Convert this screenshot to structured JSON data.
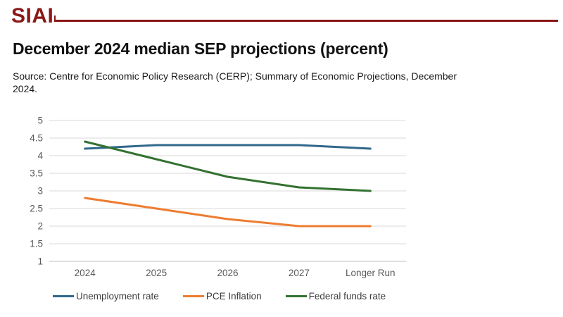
{
  "header": {
    "logo": "SIAI",
    "accent_color": "#8B1717"
  },
  "title": "December 2024 median SEP projections (percent)",
  "source": "Source: Centre for Economic Policy Research (CERP); Summary of Economic Projections, December 2024.",
  "chart_data": {
    "type": "line",
    "title": "December 2024 median SEP projections (percent)",
    "categories": [
      "2024",
      "2025",
      "2026",
      "2027",
      "Longer Run"
    ],
    "series": [
      {
        "name": "Unemployment rate",
        "color": "#31688C",
        "values": [
          4.2,
          4.3,
          4.3,
          4.3,
          4.2
        ]
      },
      {
        "name": "PCE Inflation",
        "color": "#ED7D31",
        "values": [
          2.8,
          2.5,
          2.2,
          2.0,
          2.0
        ]
      },
      {
        "name": "Federal funds rate",
        "color": "#337131",
        "values": [
          4.4,
          3.9,
          3.4,
          3.1,
          3.0
        ]
      }
    ],
    "xlabel": "",
    "ylabel": "",
    "ylim": [
      1,
      5
    ],
    "yticks": [
      5,
      4.5,
      4,
      3.5,
      3,
      2.5,
      2,
      1.5,
      1
    ],
    "grid": true,
    "gridline_color": "#D9D9D9",
    "axis_line_color": "#BFBFBF",
    "axis_label_color": "#595959",
    "legend_position": "bottom"
  }
}
